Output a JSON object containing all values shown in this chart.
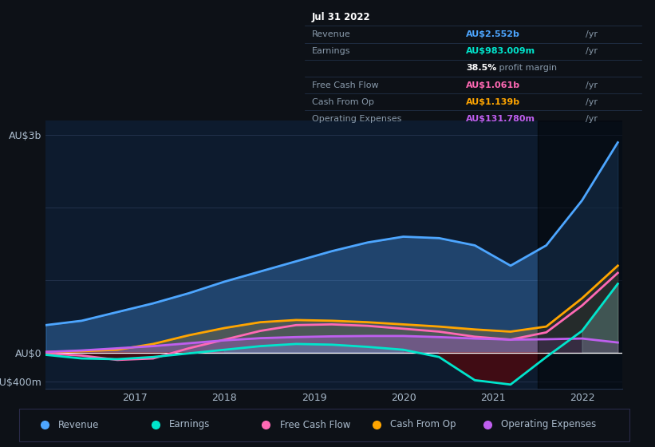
{
  "bg_color": "#0d1117",
  "plot_bg": "#0d1b2e",
  "grid_color": "#253550",
  "zero_line_color": "#ffffff",
  "title_date": "Jul 31 2022",
  "ylim": [
    -500000000,
    3200000000
  ],
  "xtick_labels": [
    "2017",
    "2018",
    "2019",
    "2020",
    "2021",
    "2022"
  ],
  "legend": [
    {
      "label": "Revenue",
      "color": "#4da6ff"
    },
    {
      "label": "Earnings",
      "color": "#00e5cc"
    },
    {
      "label": "Free Cash Flow",
      "color": "#ff69b4"
    },
    {
      "label": "Cash From Op",
      "color": "#ffa500"
    },
    {
      "label": "Operating Expenses",
      "color": "#bf5fef"
    }
  ],
  "series": {
    "x": [
      2016.0,
      2016.4,
      2016.8,
      2017.2,
      2017.6,
      2018.0,
      2018.4,
      2018.8,
      2019.2,
      2019.6,
      2020.0,
      2020.4,
      2020.8,
      2021.2,
      2021.6,
      2022.0,
      2022.4
    ],
    "Revenue": [
      380000000,
      440000000,
      560000000,
      680000000,
      820000000,
      980000000,
      1120000000,
      1260000000,
      1400000000,
      1520000000,
      1600000000,
      1580000000,
      1480000000,
      1200000000,
      1480000000,
      2100000000,
      2900000000
    ],
    "Earnings": [
      -30000000,
      -80000000,
      -90000000,
      -60000000,
      -10000000,
      40000000,
      90000000,
      120000000,
      110000000,
      80000000,
      40000000,
      -60000000,
      -380000000,
      -440000000,
      -60000000,
      300000000,
      950000000
    ],
    "FreeCashFlow": [
      -10000000,
      -40000000,
      -100000000,
      -80000000,
      60000000,
      180000000,
      300000000,
      380000000,
      390000000,
      370000000,
      330000000,
      290000000,
      220000000,
      180000000,
      280000000,
      650000000,
      1100000000
    ],
    "CashFromOp": [
      10000000,
      20000000,
      40000000,
      120000000,
      240000000,
      340000000,
      420000000,
      450000000,
      440000000,
      420000000,
      390000000,
      360000000,
      320000000,
      290000000,
      360000000,
      750000000,
      1200000000
    ],
    "OperatingExpenses": [
      10000000,
      30000000,
      60000000,
      90000000,
      130000000,
      170000000,
      200000000,
      215000000,
      225000000,
      230000000,
      230000000,
      215000000,
      195000000,
      180000000,
      185000000,
      195000000,
      140000000
    ]
  }
}
